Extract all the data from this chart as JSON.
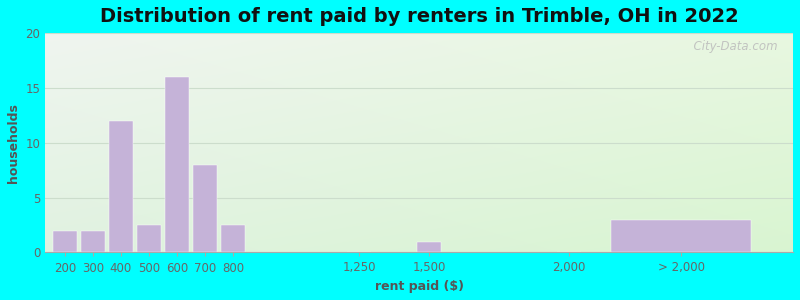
{
  "title": "Distribution of rent paid by renters in Trimble, OH in 2022",
  "xlabel": "rent paid ($)",
  "ylabel": "households",
  "bar_labels": [
    "200",
    "300",
    "400",
    "500",
    "600",
    "700",
    "800",
    "1,250",
    "1,500",
    "2,000",
    "> 2,000"
  ],
  "bar_heights": [
    2,
    2,
    12,
    2.5,
    16,
    8,
    2.5,
    0,
    1,
    0,
    3
  ],
  "bar_color": "#c5b3d8",
  "ylim": [
    0,
    20
  ],
  "yticks": [
    0,
    5,
    10,
    15,
    20
  ],
  "figure_bg": "#00ffff",
  "plot_bg_top_left": "#eef5ee",
  "plot_bg_bottom_right": "#ddeedd",
  "title_fontsize": 14,
  "axis_label_fontsize": 9,
  "tick_fontsize": 8.5,
  "watermark": "  City-Data.com",
  "x_positions": [
    200,
    300,
    400,
    500,
    600,
    700,
    800,
    1250,
    1500,
    2000,
    2400
  ],
  "bar_widths": [
    85,
    85,
    85,
    85,
    85,
    85,
    85,
    85,
    85,
    85,
    500
  ],
  "xlim": [
    130,
    2800
  ],
  "xtick_positions": [
    200,
    300,
    400,
    500,
    600,
    700,
    800,
    1250,
    1500,
    2000,
    2400
  ],
  "grid_color": "#ccddcc",
  "spine_color": "#aaaaaa"
}
